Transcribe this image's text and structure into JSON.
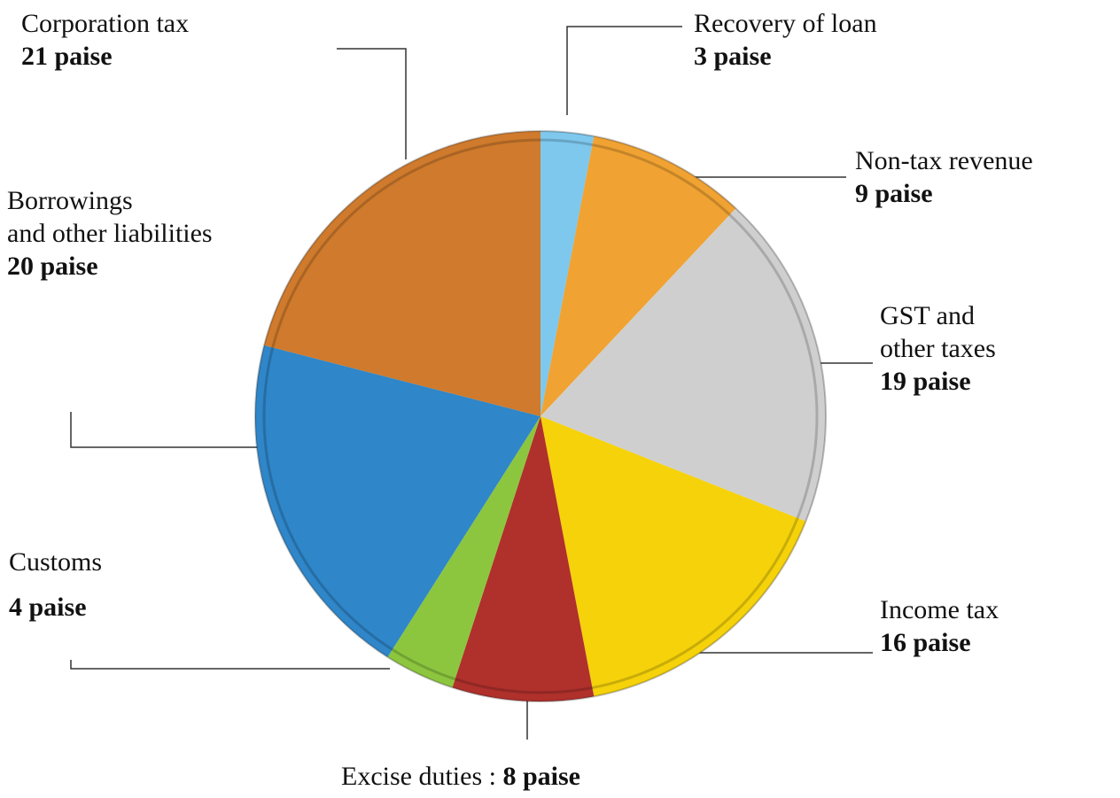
{
  "chart_data": {
    "type": "pie",
    "categories": [
      "Recovery of loan",
      "Non-tax revenue",
      "GST and\nother taxes",
      "Income tax",
      "Excise duties :",
      "Customs",
      "Borrowings\nand other liabilities",
      "Corporation tax"
    ],
    "values": [
      3,
      9,
      19,
      16,
      8,
      4,
      20,
      21
    ],
    "value_labels": [
      "3 paise",
      "9 paise",
      "19 paise",
      "16 paise",
      "8 paise",
      "4 paise",
      "20 paise",
      "21 paise"
    ],
    "colors": [
      "#7ec8ee",
      "#f0a232",
      "#cfcfcf",
      "#f5d20a",
      "#b0302c",
      "#8cc63f",
      "#2f86c8",
      "#cf7a2c"
    ]
  }
}
